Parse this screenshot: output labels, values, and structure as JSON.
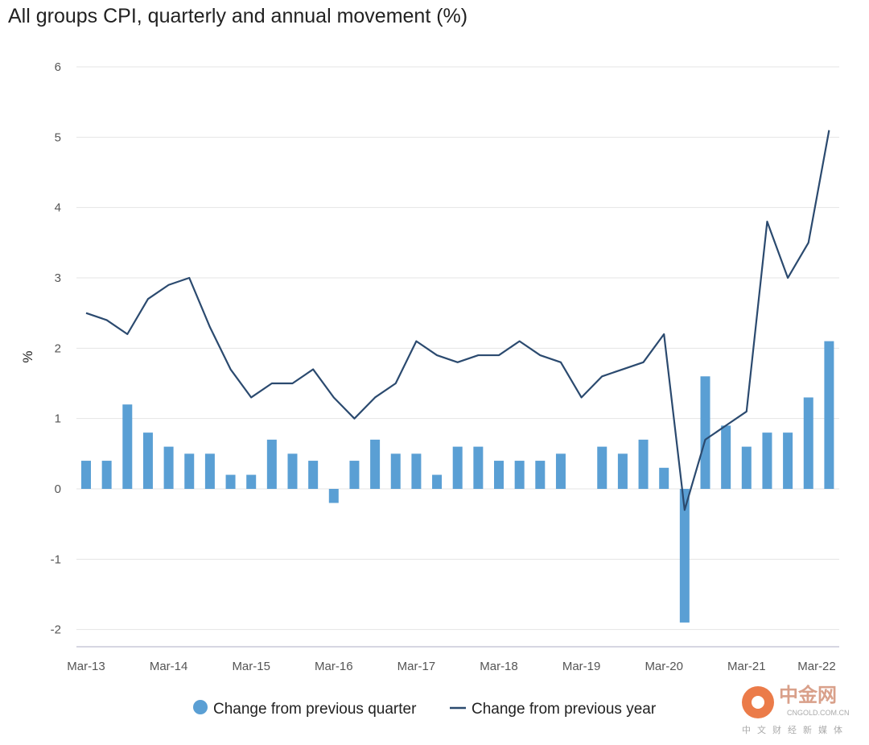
{
  "chart_data": {
    "type": "bar+line",
    "title": "All groups CPI, quarterly and annual movement (%)",
    "xlabel": "",
    "ylabel": "%",
    "ylim": [
      -2,
      6
    ],
    "yticks": [
      "6",
      "5",
      "4",
      "3",
      "2",
      "1",
      "0",
      "-1",
      "-2"
    ],
    "ytick_values": [
      6,
      5,
      4,
      3,
      2,
      1,
      0,
      -1,
      -2
    ],
    "grid": true,
    "legend_position": "bottom",
    "categories": [
      "Mar-13",
      "Jun-13",
      "Sep-13",
      "Dec-13",
      "Mar-14",
      "Jun-14",
      "Sep-14",
      "Dec-14",
      "Mar-15",
      "Jun-15",
      "Sep-15",
      "Dec-15",
      "Mar-16",
      "Jun-16",
      "Sep-16",
      "Dec-16",
      "Mar-17",
      "Jun-17",
      "Sep-17",
      "Dec-17",
      "Mar-18",
      "Jun-18",
      "Sep-18",
      "Dec-18",
      "Mar-19",
      "Jun-19",
      "Sep-19",
      "Dec-19",
      "Mar-20",
      "Jun-20",
      "Sep-20",
      "Dec-20",
      "Mar-21",
      "Jun-21",
      "Sep-21",
      "Dec-21",
      "Mar-22"
    ],
    "xtick_labels": [
      "Mar-13",
      "Mar-14",
      "Mar-15",
      "Mar-16",
      "Mar-17",
      "Mar-18",
      "Mar-19",
      "Mar-20",
      "Mar-21",
      "Mar-22"
    ],
    "series": [
      {
        "name": "Change from previous quarter",
        "type": "bar",
        "color": "#5a9fd4",
        "values": [
          0.4,
          0.4,
          1.2,
          0.8,
          0.6,
          0.5,
          0.5,
          0.2,
          0.2,
          0.7,
          0.5,
          0.4,
          -0.2,
          0.4,
          0.7,
          0.5,
          0.5,
          0.2,
          0.6,
          0.6,
          0.4,
          0.4,
          0.4,
          0.5,
          0.0,
          0.6,
          0.5,
          0.7,
          0.3,
          -1.9,
          1.6,
          0.9,
          0.6,
          0.8,
          0.8,
          1.3,
          2.1
        ]
      },
      {
        "name": "Change from previous year",
        "type": "line",
        "color": "#2b4a6f",
        "values": [
          2.5,
          2.4,
          2.2,
          2.7,
          2.9,
          3.0,
          2.3,
          1.7,
          1.3,
          1.5,
          1.5,
          1.7,
          1.3,
          1.0,
          1.3,
          1.5,
          2.1,
          1.9,
          1.8,
          1.9,
          1.9,
          2.1,
          1.9,
          1.8,
          1.3,
          1.6,
          1.7,
          1.8,
          2.2,
          -0.3,
          0.7,
          0.9,
          1.1,
          3.8,
          3.0,
          3.5,
          5.1
        ]
      }
    ]
  },
  "watermark": {
    "brand": "中金网",
    "domain": "CNGOLD.COM.CN",
    "tagline": "中文财经新媒体"
  }
}
